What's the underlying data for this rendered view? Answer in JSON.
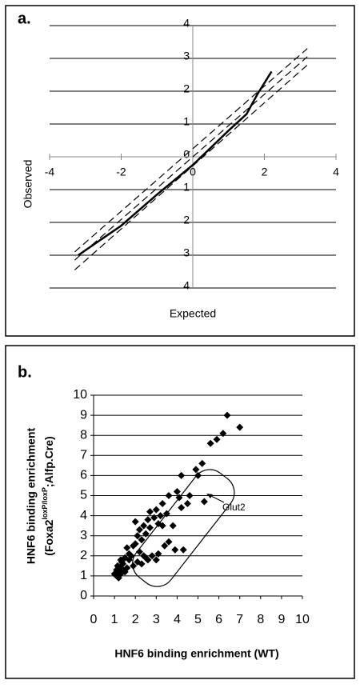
{
  "chart_data": [
    {
      "type": "line",
      "panel": "a.",
      "xlabel": "Expected",
      "ylabel": "Observed",
      "xlim": [
        -4,
        4
      ],
      "ylim": [
        -4,
        4
      ],
      "xticks": [
        -4,
        -2,
        0,
        2,
        4
      ],
      "yticks": [
        {
          "value": -4,
          "label": "4"
        },
        {
          "value": -3,
          "label": "3"
        },
        {
          "value": -2,
          "label": "2"
        },
        {
          "value": -1,
          "label": "1"
        },
        0,
        1,
        2,
        3,
        4
      ],
      "grid": true,
      "series": [
        {
          "color": "#000000",
          "dash": false,
          "width": 2.5,
          "x": [
            -3.2,
            -2,
            -1,
            0,
            1,
            1.5,
            1.8,
            2.2
          ],
          "values": [
            -3.0,
            -2.1,
            -1.15,
            -0.25,
            0.8,
            1.3,
            1.9,
            2.6
          ]
        },
        {
          "color": "#000000",
          "dash": true,
          "width": 1.2,
          "x": [
            -3.3,
            3.2
          ],
          "values": [
            -2.9,
            3.3
          ]
        },
        {
          "color": "#000000",
          "dash": true,
          "width": 1.2,
          "x": [
            -3.3,
            3.2
          ],
          "values": [
            -3.15,
            3.05
          ]
        },
        {
          "color": "#000000",
          "dash": true,
          "width": 1.2,
          "x": [
            -3.3,
            3.2
          ],
          "values": [
            -3.45,
            2.8
          ]
        }
      ]
    },
    {
      "type": "scatter",
      "panel": "b.",
      "xlabel": "HNF6 binding enrichment (WT)",
      "ylabel": {
        "line1": "HNF6 binding enrichment",
        "before": "(Foxa2",
        "sup": "loxP/loxP",
        "after": ";Alfp.Cre)"
      },
      "annotation": "Glut2",
      "xlim": [
        0,
        10
      ],
      "ylim": [
        0,
        10
      ],
      "xticks": [
        0,
        1,
        2,
        3,
        4,
        5,
        6,
        7,
        8,
        9,
        10
      ],
      "yticks": [
        0,
        1,
        2,
        3,
        4,
        5,
        6,
        7,
        8,
        9,
        10
      ],
      "grid": true,
      "color": "#000000",
      "x": [
        6.4,
        7.0,
        6.2,
        5.9,
        5.6,
        5.2,
        4.9,
        5.0,
        4.2,
        3.6,
        4.0,
        4.1,
        4.6,
        3.3,
        3.0,
        3.2,
        3.5,
        2.7,
        2.9,
        2.6,
        2.4,
        2.2,
        2.5,
        2.0,
        2.1,
        2.3,
        1.9,
        2.0,
        2.2,
        2.4,
        2.5,
        2.6,
        2.8,
        1.8,
        1.6,
        1.7,
        1.5,
        1.4,
        1.3,
        1.2,
        1.1,
        1.2,
        1.3,
        1.4,
        1.5,
        1.6,
        1.1,
        1.3,
        1.9,
        2.1,
        2.3,
        1.0,
        1.15,
        1.35,
        1.7,
        2.7,
        3.1,
        5.3,
        4.2,
        3.4,
        3.6,
        3.1,
        3.9,
        3.0,
        4.3,
        3.8,
        3.3,
        4.5
      ],
      "values": [
        9.0,
        8.4,
        8.1,
        7.8,
        7.6,
        6.6,
        6.3,
        6.0,
        6.0,
        5.0,
        5.2,
        4.9,
        5.0,
        4.6,
        4.3,
        4.0,
        4.1,
        4.2,
        3.9,
        3.8,
        3.5,
        3.3,
        3.1,
        3.7,
        3.0,
        2.8,
        2.5,
        2.6,
        2.2,
        2.0,
        1.9,
        1.8,
        2.0,
        2.0,
        2.4,
        1.8,
        1.9,
        1.6,
        1.4,
        1.2,
        1.0,
        0.9,
        1.1,
        1.3,
        1.2,
        1.4,
        1.3,
        1.8,
        1.5,
        1.7,
        1.6,
        1.1,
        1.5,
        1.7,
        2.1,
        3.4,
        3.6,
        4.7,
        4.4,
        2.5,
        2.7,
        2.1,
        2.3,
        1.8,
        2.3,
        3.5,
        3.5,
        4.6
      ]
    }
  ]
}
